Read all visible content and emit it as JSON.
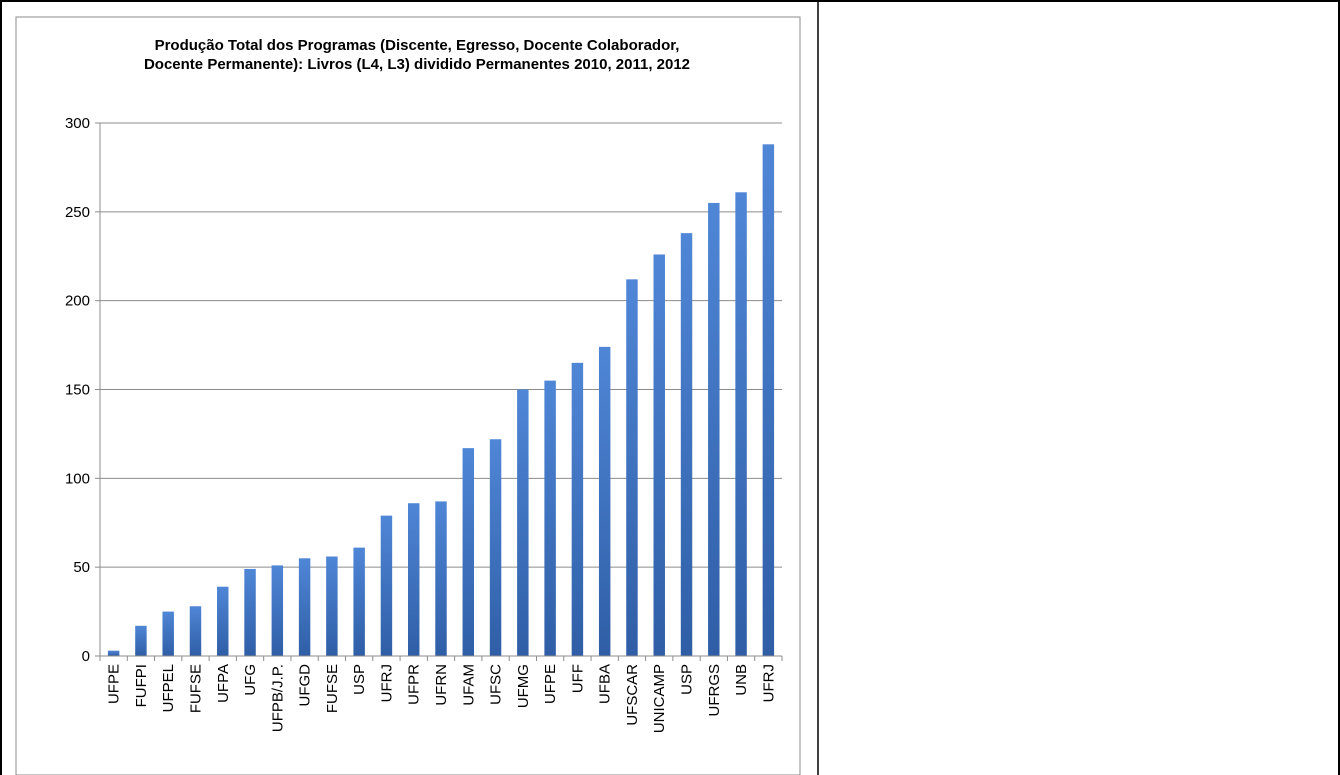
{
  "chart_data": {
    "type": "bar",
    "title_lines": [
      "Produção Total dos Programas (Discente, Egresso, Docente Colaborador,",
      "Docente Permanente): Livros (L4, L3) dividido Permanentes 2010, 2011, 2012"
    ],
    "categories": [
      "UFPE",
      "FUFPI",
      "UFPEL",
      "FUFSE",
      "UFPA",
      "UFG",
      "UFPB/J.P.",
      "UFGD",
      "FUFSE",
      "USP",
      "UFRJ",
      "UFPR",
      "UFRN",
      "UFAM",
      "UFSC",
      "UFMG",
      "UFPE",
      "UFF",
      "UFBA",
      "UFSCAR",
      "UNICAMP",
      "USP",
      "UFRGS",
      "UNB",
      "UFRJ"
    ],
    "values": [
      3,
      17,
      25,
      28,
      39,
      49,
      51,
      55,
      56,
      61,
      79,
      86,
      87,
      117,
      122,
      150,
      155,
      165,
      174,
      212,
      226,
      238,
      255,
      261,
      288
    ],
    "ylim": [
      0,
      300
    ],
    "yticks": [
      "0",
      "50",
      "100",
      "150",
      "200",
      "250",
      "300"
    ],
    "xlabel": "",
    "ylabel": "",
    "grid": true,
    "legend": "none",
    "bar_color": "#3c72c0",
    "bar_gradient_top": "#4f86d6",
    "bar_gradient_bottom": "#2f5ea6",
    "gridline_color": "#8c8c8c",
    "axis_color": "#8c8c8c"
  }
}
